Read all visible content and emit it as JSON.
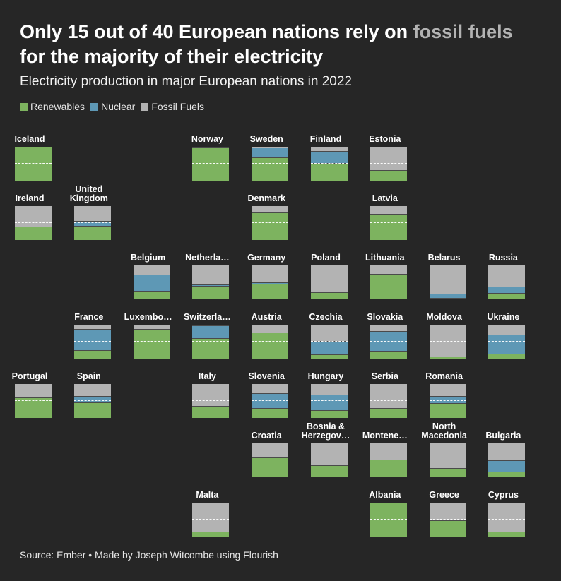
{
  "header": {
    "title_part1": "Only 15 out of 40 European nations rely on ",
    "title_highlight": "fossil fuels",
    "title_part2": "for the majority of their electricity",
    "subtitle": "Electricity production in major European nations in 2022"
  },
  "legend": [
    {
      "label": "Renewables",
      "color": "#7db35f"
    },
    {
      "label": "Nuclear",
      "color": "#5e98b5"
    },
    {
      "label": "Fossil Fuels",
      "color": "#b3b3b3"
    }
  ],
  "footer": {
    "source": "Source: Ember • Made by Joseph Witcombe using Flourish"
  },
  "chart_data": {
    "type": "tile-map-stacked",
    "units": "share of electricity production",
    "series": [
      "Renewables",
      "Nuclear",
      "Fossil Fuels"
    ],
    "countries": [
      {
        "name": "Iceland",
        "col": 0,
        "row": 0,
        "renewables": 100,
        "nuclear": 0,
        "fossil": 0
      },
      {
        "name": "Norway",
        "col": 3,
        "row": 0,
        "renewables": 99,
        "nuclear": 0,
        "fossil": 1
      },
      {
        "name": "Sweden",
        "col": 4,
        "row": 0,
        "renewables": 68,
        "nuclear": 30,
        "fossil": 2
      },
      {
        "name": "Finland",
        "col": 5,
        "row": 0,
        "renewables": 53,
        "nuclear": 35,
        "fossil": 12
      },
      {
        "name": "Estonia",
        "col": 6,
        "row": 0,
        "renewables": 31,
        "nuclear": 0,
        "fossil": 69
      },
      {
        "name": "Ireland",
        "col": 0,
        "row": 1,
        "renewables": 39,
        "nuclear": 0,
        "fossil": 61
      },
      {
        "name": "United\nKingdom",
        "col": 1,
        "row": 1,
        "renewables": 42,
        "nuclear": 14,
        "fossil": 44
      },
      {
        "name": "Denmark",
        "col": 4,
        "row": 1,
        "renewables": 82,
        "nuclear": 0,
        "fossil": 18
      },
      {
        "name": "Latvia",
        "col": 6,
        "row": 1,
        "renewables": 77,
        "nuclear": 0,
        "fossil": 23
      },
      {
        "name": "Belgium",
        "col": 2,
        "row": 2,
        "renewables": 25,
        "nuclear": 47,
        "fossil": 28
      },
      {
        "name": "Netherla…",
        "col": 3,
        "row": 2,
        "renewables": 40,
        "nuclear": 3,
        "fossil": 57
      },
      {
        "name": "Germany",
        "col": 4,
        "row": 2,
        "renewables": 45,
        "nuclear": 6,
        "fossil": 49
      },
      {
        "name": "Poland",
        "col": 5,
        "row": 2,
        "renewables": 20,
        "nuclear": 0,
        "fossil": 80
      },
      {
        "name": "Lithuania",
        "col": 6,
        "row": 2,
        "renewables": 74,
        "nuclear": 0,
        "fossil": 26
      },
      {
        "name": "Belarus",
        "col": 7,
        "row": 2,
        "renewables": 4,
        "nuclear": 12,
        "fossil": 84
      },
      {
        "name": "Russia",
        "col": 8,
        "row": 2,
        "renewables": 18,
        "nuclear": 19,
        "fossil": 63
      },
      {
        "name": "France",
        "col": 1,
        "row": 3,
        "renewables": 24,
        "nuclear": 63,
        "fossil": 13
      },
      {
        "name": "Luxembo…",
        "col": 2,
        "row": 3,
        "renewables": 87,
        "nuclear": 0,
        "fossil": 13
      },
      {
        "name": "Switzerla…",
        "col": 3,
        "row": 3,
        "renewables": 61,
        "nuclear": 37,
        "fossil": 2
      },
      {
        "name": "Austria",
        "col": 4,
        "row": 3,
        "renewables": 77,
        "nuclear": 0,
        "fossil": 23
      },
      {
        "name": "Czechia",
        "col": 5,
        "row": 3,
        "renewables": 13,
        "nuclear": 40,
        "fossil": 47
      },
      {
        "name": "Slovakia",
        "col": 6,
        "row": 3,
        "renewables": 23,
        "nuclear": 59,
        "fossil": 18
      },
      {
        "name": "Moldova",
        "col": 7,
        "row": 3,
        "renewables": 6,
        "nuclear": 0,
        "fossil": 94
      },
      {
        "name": "Ukraine",
        "col": 8,
        "row": 3,
        "renewables": 14,
        "nuclear": 56,
        "fossil": 30
      },
      {
        "name": "Portugal",
        "col": 0,
        "row": 4,
        "renewables": 60,
        "nuclear": 0,
        "fossil": 40
      },
      {
        "name": "Spain",
        "col": 1,
        "row": 4,
        "renewables": 45,
        "nuclear": 20,
        "fossil": 35
      },
      {
        "name": "Italy",
        "col": 3,
        "row": 4,
        "renewables": 36,
        "nuclear": 0,
        "fossil": 64
      },
      {
        "name": "Slovenia",
        "col": 4,
        "row": 4,
        "renewables": 30,
        "nuclear": 43,
        "fossil": 27
      },
      {
        "name": "Hungary",
        "col": 5,
        "row": 4,
        "renewables": 22,
        "nuclear": 47,
        "fossil": 31
      },
      {
        "name": "Serbia",
        "col": 6,
        "row": 4,
        "renewables": 30,
        "nuclear": 0,
        "fossil": 70
      },
      {
        "name": "Romania",
        "col": 7,
        "row": 4,
        "renewables": 44,
        "nuclear": 20,
        "fossil": 36
      },
      {
        "name": "Croatia",
        "col": 4,
        "row": 5,
        "renewables": 59,
        "nuclear": 0,
        "fossil": 41
      },
      {
        "name": "Bosnia &\nHerzegov…",
        "col": 5,
        "row": 5,
        "renewables": 35,
        "nuclear": 0,
        "fossil": 65
      },
      {
        "name": "Montene…",
        "col": 6,
        "row": 5,
        "renewables": 53,
        "nuclear": 0,
        "fossil": 47
      },
      {
        "name": "North\nMacedonia",
        "col": 7,
        "row": 5,
        "renewables": 27,
        "nuclear": 0,
        "fossil": 73
      },
      {
        "name": "Bulgaria",
        "col": 8,
        "row": 5,
        "renewables": 17,
        "nuclear": 33,
        "fossil": 50
      },
      {
        "name": "Malta",
        "col": 3,
        "row": 6,
        "renewables": 14,
        "nuclear": 0,
        "fossil": 86
      },
      {
        "name": "Albania",
        "col": 6,
        "row": 6,
        "renewables": 100,
        "nuclear": 0,
        "fossil": 0
      },
      {
        "name": "Greece",
        "col": 7,
        "row": 6,
        "renewables": 47,
        "nuclear": 0,
        "fossil": 53
      },
      {
        "name": "Cyprus",
        "col": 8,
        "row": 6,
        "renewables": 15,
        "nuclear": 0,
        "fossil": 85
      }
    ]
  }
}
